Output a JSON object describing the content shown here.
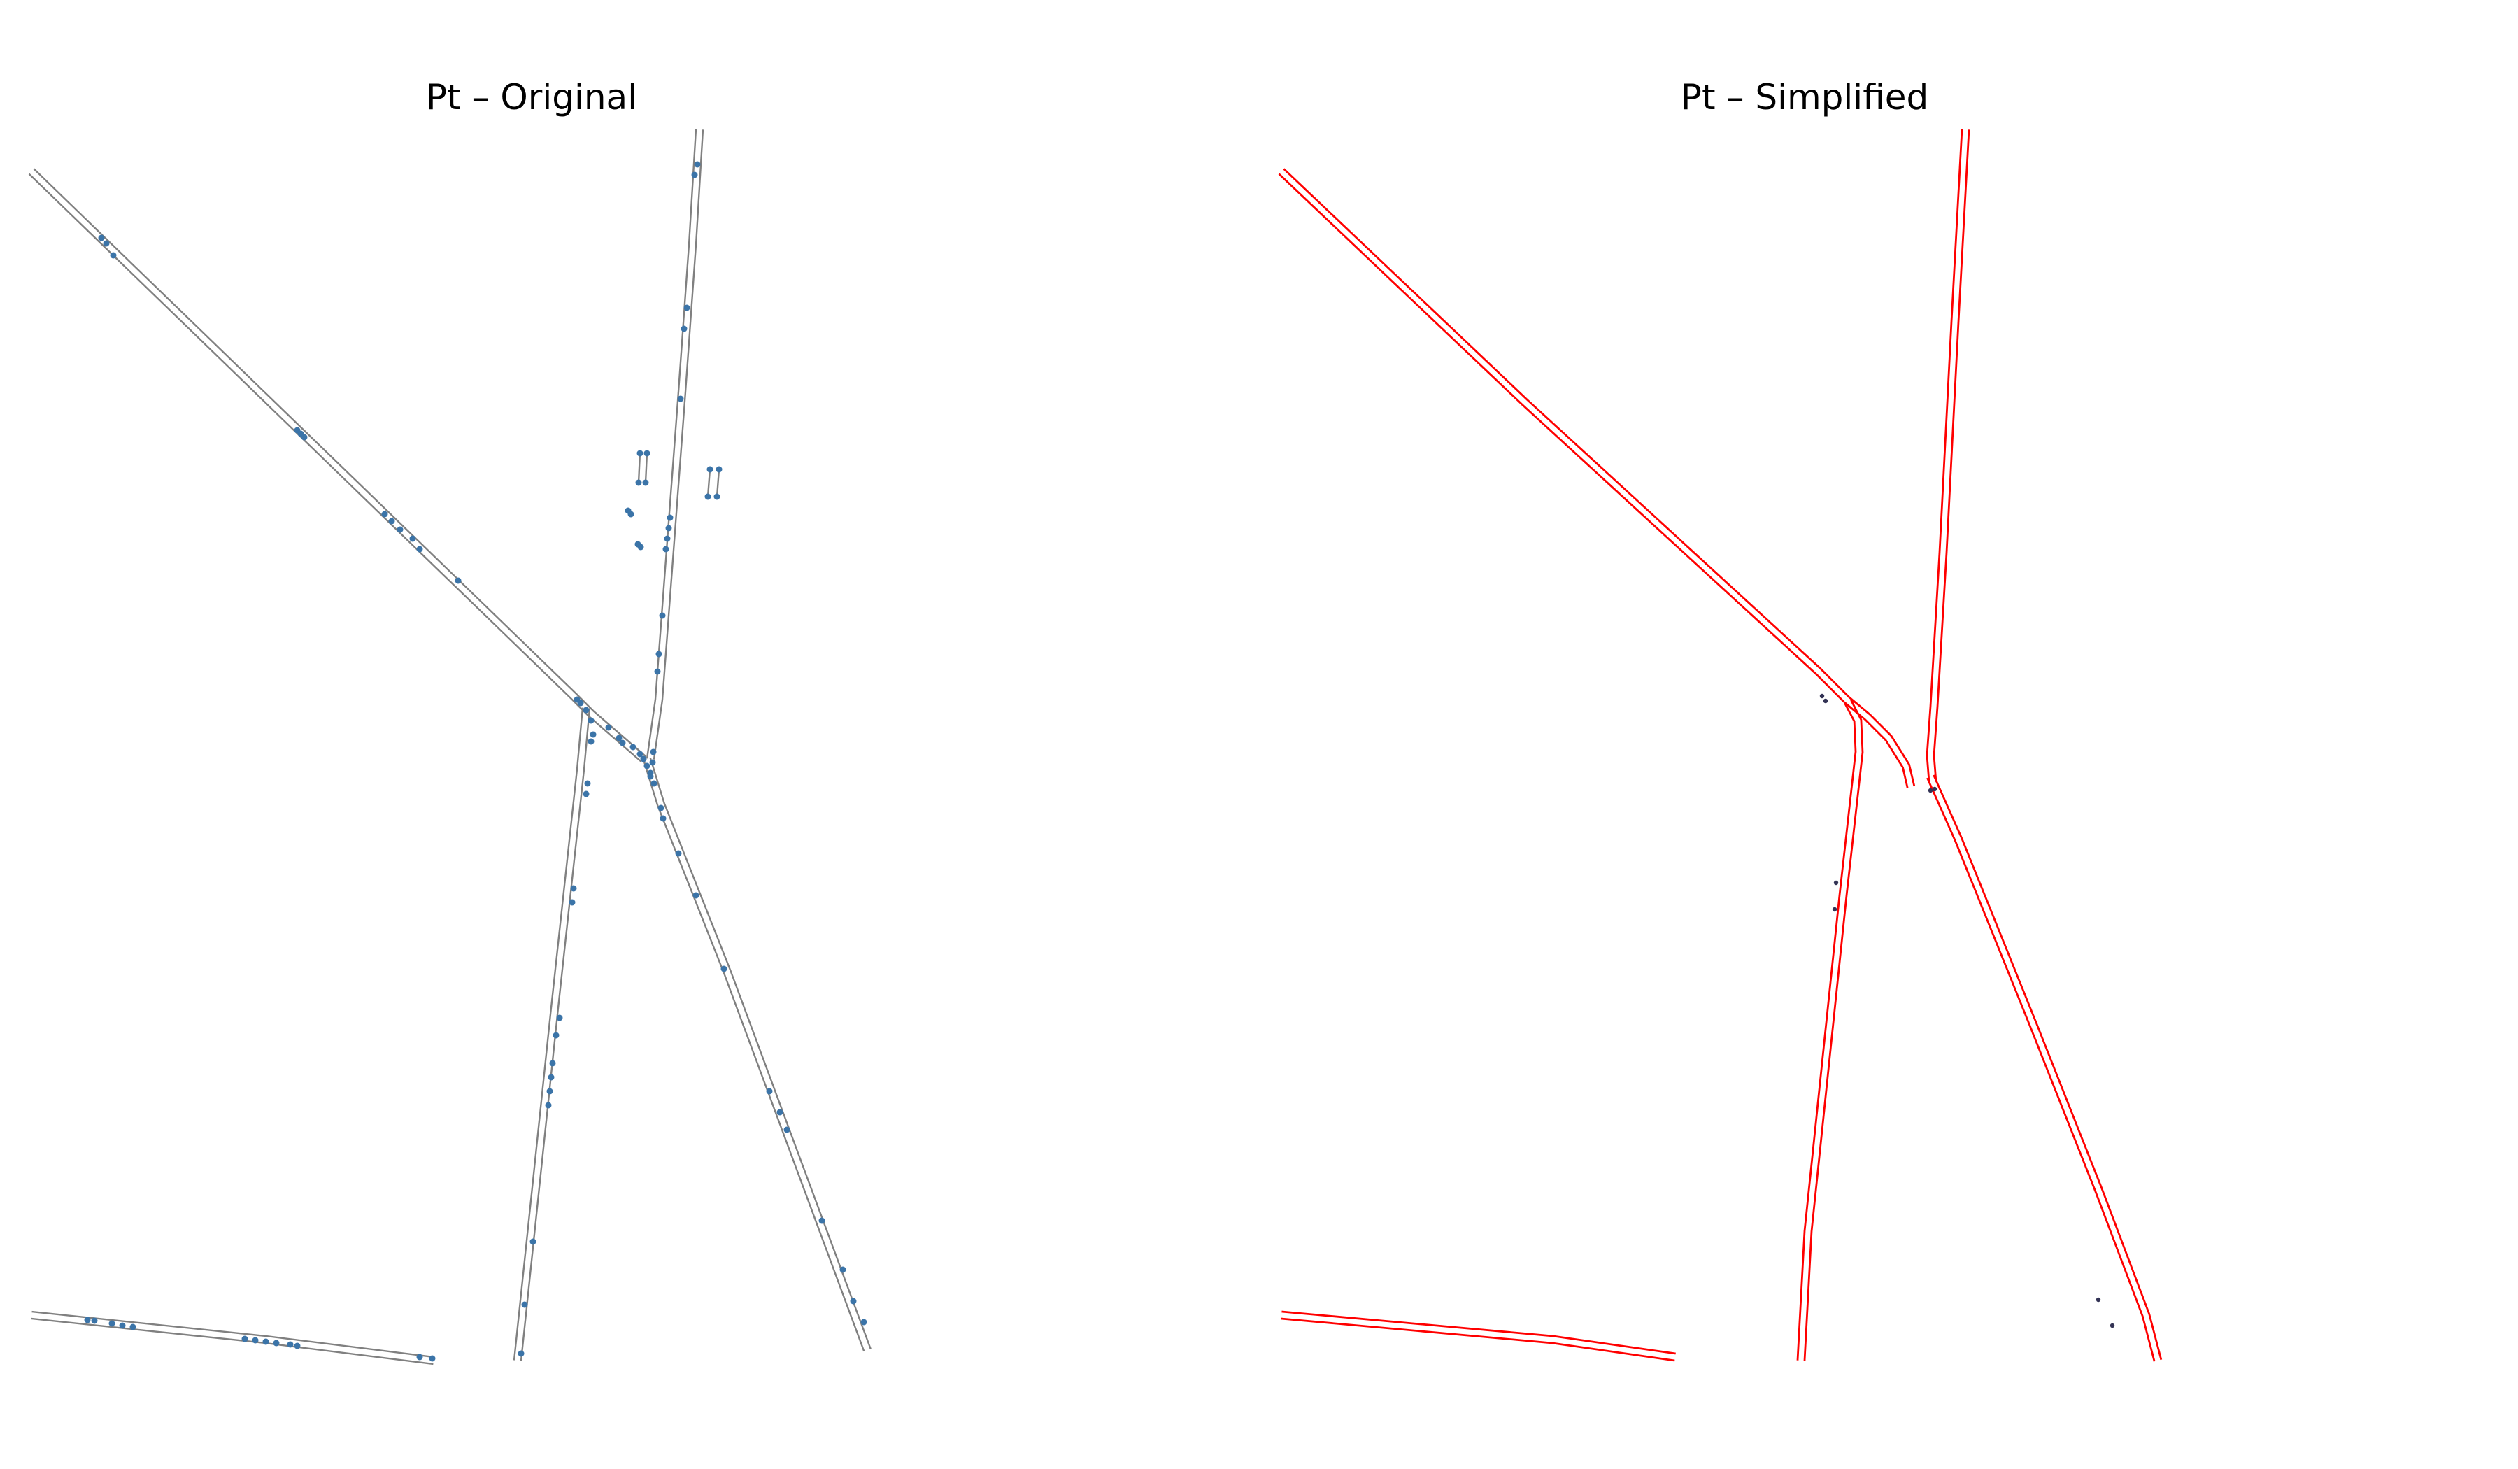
{
  "panels": [
    {
      "title": "Pt – Original",
      "edge_color": "#808080",
      "node_color": "#3b74a8"
    },
    {
      "title": "Pt – Simplified",
      "edge_color": "#ff0000",
      "node_color": "#3b74a8"
    }
  ]
}
